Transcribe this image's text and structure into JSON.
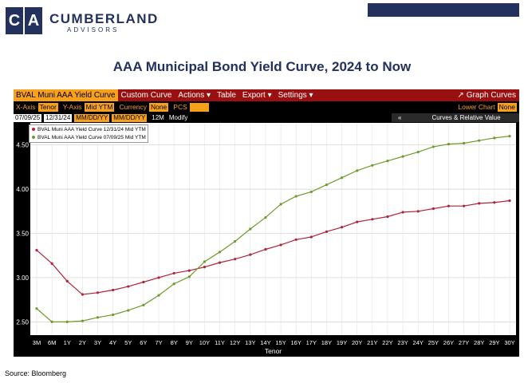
{
  "brand": {
    "initial_1": "C",
    "initial_2": "A",
    "name": "CUMBERLAND",
    "subtitle": "ADVISORS"
  },
  "page_title": "AAA Municipal Bond Yield Curve, 2024 to Now",
  "source": "Source: Bloomberg",
  "terminal": {
    "active_tab": "BVAL Muni AAA Yield Curve",
    "menu": [
      "Custom Curve",
      "Actions ▾",
      "Table",
      "Export ▾",
      "Settings ▾"
    ],
    "graph_curves": "Graph Curves",
    "row2": {
      "xaxis_label": "X-Axis",
      "xaxis_value": "Tenor",
      "yaxis_label": "Y-Axis",
      "yaxis_value": "Mid YTM",
      "currency_label": "Currency",
      "currency_value": "None",
      "pcs_label": "PCS",
      "lower_chart_label": "Lower Chart",
      "lower_chart_value": "None"
    },
    "row3": {
      "date_1": "07/09/25",
      "date_2": "12/31/24",
      "mmdd_1": "MM/DD/YY",
      "mmdd_2": "MM/DD/YY",
      "period": "12M",
      "modify": "Modify",
      "collapse": "«",
      "curves_label": "Curves & Relative Value"
    }
  },
  "colors": {
    "series_2024": "#b0233a",
    "series_2025": "#6f9b2c",
    "accent": "#f7a01c",
    "navy": "#23315f"
  },
  "chart_data": {
    "type": "line",
    "categories": [
      "3M",
      "6M",
      "1Y",
      "2Y",
      "3Y",
      "4Y",
      "5Y",
      "6Y",
      "7Y",
      "8Y",
      "9Y",
      "10Y",
      "11Y",
      "12Y",
      "13Y",
      "14Y",
      "15Y",
      "16Y",
      "17Y",
      "18Y",
      "19Y",
      "20Y",
      "21Y",
      "22Y",
      "23Y",
      "24Y",
      "25Y",
      "26Y",
      "27Y",
      "28Y",
      "29Y",
      "30Y"
    ],
    "series": [
      {
        "name": "BVAL Muni AAA Yield Curve 12/31/24 Mid YTM",
        "values": [
          3.31,
          3.16,
          2.96,
          2.81,
          2.83,
          2.86,
          2.9,
          2.95,
          3.0,
          3.05,
          3.08,
          3.12,
          3.17,
          3.21,
          3.26,
          3.32,
          3.37,
          3.43,
          3.46,
          3.52,
          3.57,
          3.63,
          3.66,
          3.69,
          3.74,
          3.75,
          3.78,
          3.81,
          3.81,
          3.84,
          3.85,
          3.87
        ]
      },
      {
        "name": "BVAL Muni AAA Yield Curve 07/09/25 Mid YTM",
        "values": [
          2.65,
          2.5,
          2.5,
          2.51,
          2.55,
          2.58,
          2.63,
          2.69,
          2.8,
          2.93,
          3.01,
          3.18,
          3.29,
          3.41,
          3.55,
          3.68,
          3.83,
          3.92,
          3.97,
          4.05,
          4.13,
          4.21,
          4.27,
          4.32,
          4.37,
          4.42,
          4.48,
          4.51,
          4.52,
          4.55,
          4.58,
          4.6
        ]
      }
    ],
    "yticks": [
      "2.50",
      "3.00",
      "3.50",
      "4.00",
      "4.50"
    ],
    "ylim": [
      2.35,
      4.75
    ],
    "xlabel": "Tenor",
    "ylabel": "",
    "grid": true
  }
}
